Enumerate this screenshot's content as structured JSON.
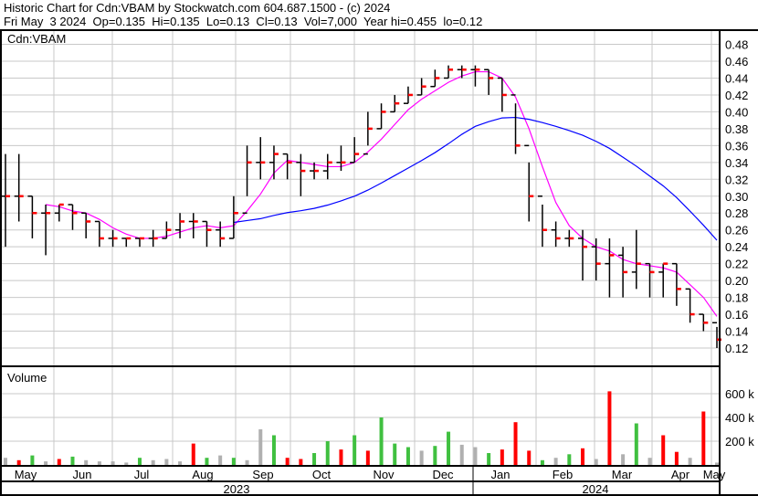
{
  "header": {
    "line1": "Historic Chart for Cdn:VBAM by Stockwatch.com 604.687.1500 - (c) 2024",
    "line2": "Fri May  3 2024  Op=0.135  Hi=0.135  Lo=0.13  Cl=0.13  Vol=7,000  Year hi=0.455  lo=0.12"
  },
  "chart_data": [
    {
      "type": "line",
      "title": "Cdn:VBAM",
      "ylim": [
        0.11,
        0.49
      ],
      "yticks": [
        "0.48",
        "0.46",
        "0.44",
        "0.42",
        "0.40",
        "0.38",
        "0.36",
        "0.34",
        "0.32",
        "0.30",
        "0.28",
        "0.26",
        "0.24",
        "0.22",
        "0.20",
        "0.18",
        "0.16",
        "0.14",
        "0.12"
      ],
      "grid": true,
      "bar_style": "OHLC",
      "colors": {
        "bar": "#000000",
        "close_tick": "#ff0000",
        "ma_short": "#ff00ff",
        "ma_long": "#0000ff",
        "grid": "#c8c8c8"
      },
      "close": [
        0.3,
        0.3,
        0.28,
        0.28,
        0.29,
        0.28,
        0.27,
        0.25,
        0.25,
        0.25,
        0.25,
        0.25,
        0.26,
        0.27,
        0.27,
        0.26,
        0.25,
        0.28,
        0.34,
        0.34,
        0.35,
        0.34,
        0.33,
        0.33,
        0.34,
        0.34,
        0.35,
        0.38,
        0.4,
        0.41,
        0.42,
        0.43,
        0.44,
        0.45,
        0.45,
        0.45,
        0.44,
        0.42,
        0.36,
        0.3,
        0.26,
        0.25,
        0.25,
        0.24,
        0.22,
        0.23,
        0.21,
        0.22,
        0.21,
        0.22,
        0.19,
        0.16,
        0.15,
        0.13
      ],
      "high": [
        0.35,
        0.35,
        0.3,
        0.29,
        0.29,
        0.29,
        0.28,
        0.27,
        0.26,
        0.25,
        0.25,
        0.26,
        0.27,
        0.28,
        0.28,
        0.27,
        0.27,
        0.3,
        0.36,
        0.37,
        0.36,
        0.35,
        0.35,
        0.34,
        0.35,
        0.36,
        0.37,
        0.4,
        0.41,
        0.42,
        0.43,
        0.44,
        0.45,
        0.455,
        0.455,
        0.455,
        0.45,
        0.44,
        0.41,
        0.34,
        0.29,
        0.27,
        0.26,
        0.26,
        0.25,
        0.25,
        0.24,
        0.26,
        0.22,
        0.22,
        0.22,
        0.19,
        0.16,
        0.145
      ],
      "low": [
        0.24,
        0.27,
        0.25,
        0.23,
        0.27,
        0.26,
        0.25,
        0.24,
        0.24,
        0.24,
        0.24,
        0.24,
        0.25,
        0.25,
        0.25,
        0.24,
        0.24,
        0.25,
        0.3,
        0.32,
        0.32,
        0.32,
        0.3,
        0.32,
        0.32,
        0.33,
        0.34,
        0.36,
        0.38,
        0.4,
        0.41,
        0.42,
        0.43,
        0.44,
        0.44,
        0.43,
        0.42,
        0.4,
        0.35,
        0.27,
        0.24,
        0.24,
        0.24,
        0.2,
        0.2,
        0.18,
        0.18,
        0.19,
        0.18,
        0.18,
        0.17,
        0.15,
        0.14,
        0.12
      ],
      "ma_short_window": 4,
      "ma_long_window": 18,
      "legend": "none"
    },
    {
      "type": "bar",
      "title": "Volume",
      "ylim": [
        0,
        800000
      ],
      "yticks": [
        "600 k",
        "400 k",
        "200 k"
      ],
      "values_k": [
        60,
        40,
        80,
        30,
        50,
        70,
        40,
        30,
        30,
        20,
        60,
        40,
        50,
        30,
        180,
        60,
        80,
        60,
        40,
        300,
        250,
        60,
        50,
        100,
        200,
        130,
        250,
        120,
        400,
        180,
        150,
        120,
        160,
        280,
        170,
        150,
        100,
        130,
        360,
        120,
        40,
        60,
        90,
        140,
        50,
        620,
        90,
        350,
        60,
        250,
        110,
        60,
        450,
        20
      ],
      "bar_colors": [
        "gray",
        "red",
        "green",
        "gray",
        "red",
        "green",
        "gray",
        "gray",
        "gray",
        "gray",
        "green",
        "gray",
        "gray",
        "gray",
        "red",
        "green",
        "gray",
        "green",
        "gray",
        "gray",
        "green",
        "red",
        "red",
        "green",
        "green",
        "red",
        "green",
        "red",
        "green",
        "green",
        "green",
        "gray",
        "green",
        "green",
        "gray",
        "gray",
        "green",
        "red",
        "red",
        "red",
        "green",
        "gray",
        "green",
        "red",
        "gray",
        "red",
        "gray",
        "green",
        "gray",
        "red",
        "red",
        "gray",
        "red",
        "gray"
      ],
      "color_map": {
        "green": "#40c040",
        "red": "#ff0000",
        "gray": "#b0b0b0"
      }
    }
  ],
  "x_axis": {
    "months": [
      "May",
      "Jun",
      "Jul",
      "Aug",
      "Sep",
      "Oct",
      "Nov",
      "Dec",
      "Jan",
      "Feb",
      "Mar",
      "Apr",
      "May"
    ],
    "years": [
      "2023",
      "2024"
    ]
  }
}
